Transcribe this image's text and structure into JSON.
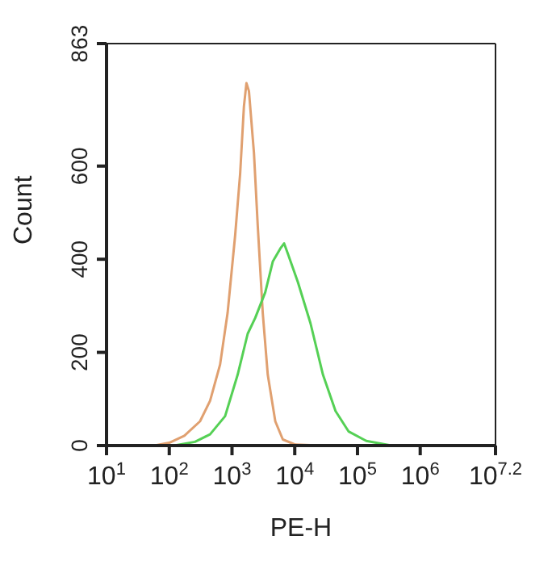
{
  "chart_data": {
    "type": "line",
    "xlabel": "PE-H",
    "ylabel": "Count",
    "log": "x",
    "xlim": [
      10,
      15848932
    ],
    "xticks": [
      {
        "value": 10,
        "label": "10$^{1}$"
      },
      {
        "value": 100,
        "label": "10$^{2}$"
      },
      {
        "value": 1000,
        "label": "10$^{3}$"
      },
      {
        "value": 10000,
        "label": "10$^{4}$"
      },
      {
        "value": 100000,
        "label": "10$^{5}$"
      },
      {
        "value": 1000000,
        "label": "10$^{6}$"
      },
      {
        "value": 15848932,
        "label": "10$^{7.2}$"
      }
    ],
    "ylim": [
      0,
      863
    ],
    "yticks": [
      0,
      200,
      400,
      600,
      863
    ],
    "marker": "none",
    "line_style": "solid",
    "series": [
      {
        "color": "#e0a070",
        "x": [
          58,
          100,
          174,
          309,
          447,
          646,
          851,
          1122,
          1349,
          1549,
          1698,
          1862,
          2239,
          2570,
          3090,
          3715,
          4898,
          6457,
          10233,
          25704
        ],
        "values": [
          0,
          6,
          21,
          52,
          96,
          174,
          285,
          451,
          584,
          728,
          778,
          761,
          628,
          473,
          285,
          152,
          52,
          13,
          2,
          0
        ]
      },
      {
        "color": "#55d055",
        "x": [
          120,
          257,
          447,
          776,
          1230,
          1778,
          2344,
          3388,
          4467,
          5888,
          6761,
          7762,
          11220,
          17783,
          28184,
          44668,
          72444,
          138038,
          346737
        ],
        "values": [
          0,
          8,
          24,
          63,
          152,
          240,
          274,
          329,
          395,
          423,
          434,
          412,
          351,
          263,
          152,
          74,
          30,
          10,
          0
        ]
      }
    ]
  }
}
